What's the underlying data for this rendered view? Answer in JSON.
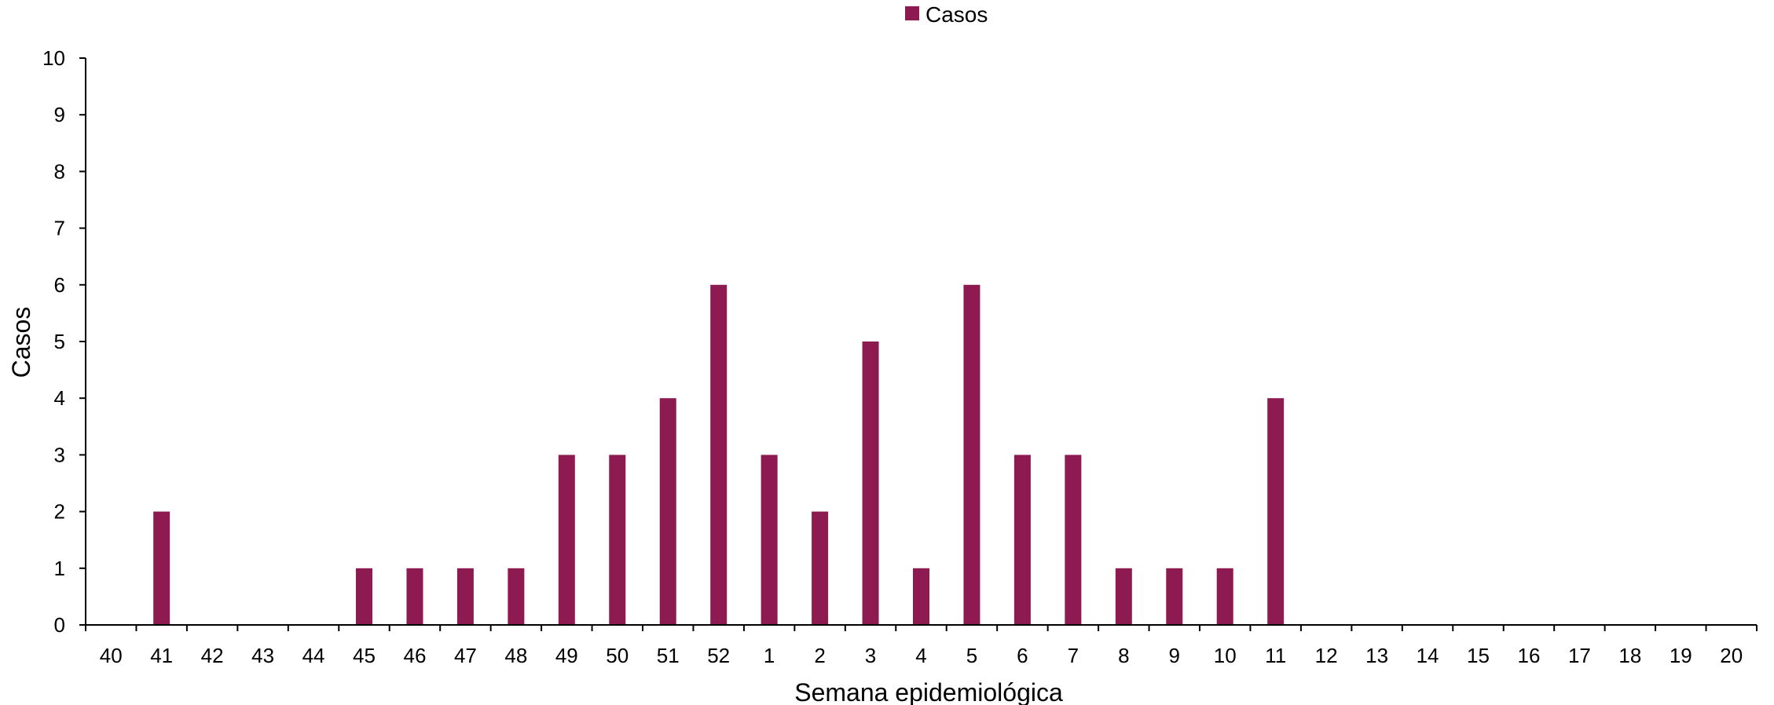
{
  "chart_data": {
    "type": "bar",
    "title": "",
    "xlabel": "Semana epidemiológica",
    "ylabel": "Casos",
    "ylim": [
      0,
      10
    ],
    "yticks": [
      "0",
      "1",
      "2",
      "3",
      "4",
      "5",
      "6",
      "7",
      "8",
      "9",
      "10"
    ],
    "categories": [
      "40",
      "41",
      "42",
      "43",
      "44",
      "45",
      "46",
      "47",
      "48",
      "49",
      "50",
      "51",
      "52",
      "1",
      "2",
      "3",
      "4",
      "5",
      "6",
      "7",
      "8",
      "9",
      "10",
      "11",
      "12",
      "13",
      "14",
      "15",
      "16",
      "17",
      "18",
      "19",
      "20"
    ],
    "series": [
      {
        "name": "Casos",
        "color": "#8E1A52",
        "values": [
          0,
          2,
          0,
          0,
          0,
          1,
          1,
          1,
          1,
          3,
          3,
          4,
          6,
          3,
          2,
          5,
          1,
          6,
          3,
          3,
          1,
          1,
          1,
          4,
          0,
          0,
          0,
          0,
          0,
          0,
          0,
          0,
          0
        ]
      }
    ],
    "grid": false,
    "legend": "top-center"
  }
}
